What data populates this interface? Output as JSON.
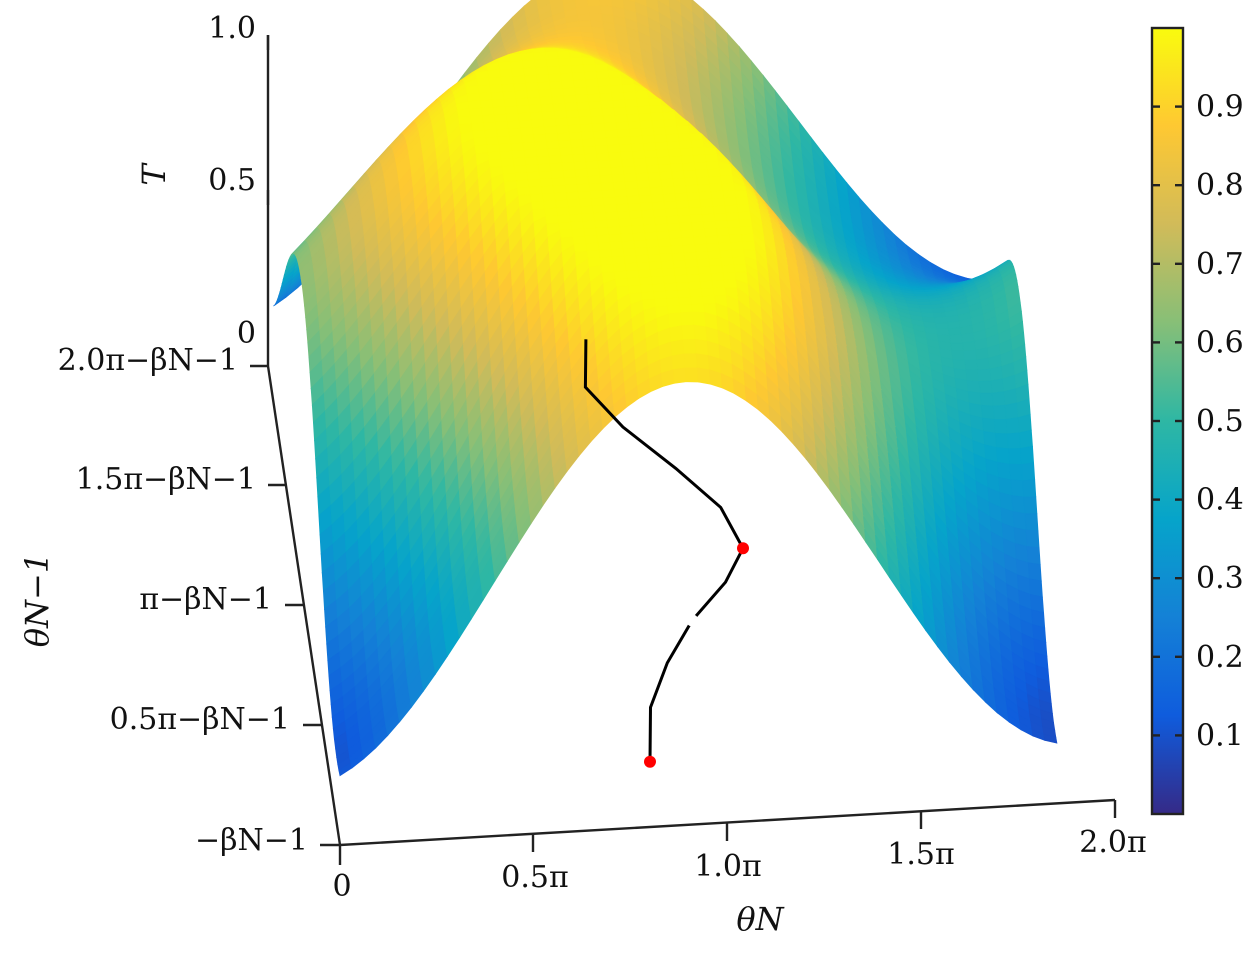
{
  "chart_data": {
    "type": "surface",
    "xlabel": "θN",
    "ylabel": "θN−1",
    "zlabel": "T",
    "xticks": [
      "0",
      "0.5π",
      "1.0π",
      "1.5π",
      "2.0π"
    ],
    "yticks": [
      "−βN−1",
      "0.5π−βN−1",
      "π−βN−1",
      "1.5π−βN−1",
      "2.0π−βN−1"
    ],
    "zticks": [
      "0",
      "0.5",
      "1.0"
    ],
    "xlim": [
      "0",
      "2π"
    ],
    "ylim": [
      "−βN−1",
      "2π−βN−1"
    ],
    "zlim": [
      0,
      1.0
    ],
    "colorbar": {
      "colormap": "parula",
      "range": [
        0,
        1
      ],
      "ticks": [
        "0.1",
        "0.2",
        "0.3",
        "0.4",
        "0.5",
        "0.6",
        "0.7",
        "0.8",
        "0.9"
      ],
      "stops": [
        "#352a87",
        "#0f5cdd",
        "#1481d6",
        "#06a4ca",
        "#2eb7a4",
        "#87bf77",
        "#d1bb59",
        "#fec832",
        "#f9fb0e"
      ]
    },
    "path_curve": {
      "points": [
        {
          "x": 0.8,
          "y": 0.0
        },
        {
          "x": 0.82,
          "y": 0.2
        },
        {
          "x": 0.88,
          "y": 0.38
        },
        {
          "x": 0.96,
          "y": 0.55
        },
        {
          "x": 1.06,
          "y": 0.7
        },
        {
          "x": 1.12,
          "y": 0.86
        },
        {
          "x": 1.08,
          "y": 1.05
        },
        {
          "x": 0.98,
          "y": 1.22
        },
        {
          "x": 0.86,
          "y": 1.4
        },
        {
          "x": 0.78,
          "y": 1.58
        },
        {
          "x": 0.8,
          "y": 1.78
        }
      ],
      "markers": [
        {
          "name": "start",
          "color": "#ff0000",
          "x": 0.8,
          "y": 0.0
        },
        {
          "name": "middle",
          "color": "#ffffff",
          "x": 0.96,
          "y": 0.55
        },
        {
          "name": "end",
          "color": "#ff0000",
          "x": 1.12,
          "y": 0.86
        }
      ]
    }
  }
}
